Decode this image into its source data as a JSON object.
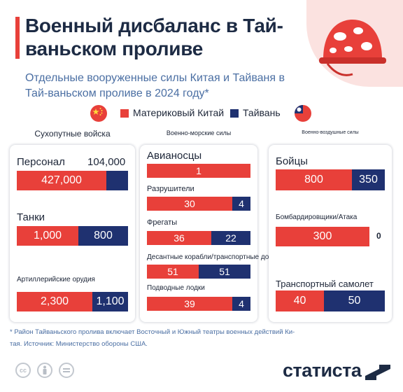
{
  "title": "Военный дисбаланс в Тай-ваньском проливе",
  "title_line1": "Военный дисбаланс в Тай-",
  "title_line2": "ваньском проливе",
  "subtitle": "Отдельные вооруженные силы Китая и Тайваня в Тай-ваньском проливе в 2024 году*",
  "legend": {
    "china": "Материковый Китай",
    "taiwan": "Тайвань"
  },
  "colors": {
    "china": "#e8403a",
    "taiwan": "#1f3170",
    "accent": "#e8403a",
    "note": "#4b6fa3"
  },
  "footnote": "* Район Тайваньского пролива включает Восточный и Южный театры военных действий Китая. Источник: Министерство обороны США.",
  "footnote_line1": "* Район Тайваньского пролива включает Восточный и Южный театры военных действий Ки-",
  "footnote_line2": "тая. Источник: Министерство обороны США.",
  "brand": "статиста",
  "icons": [
    "helmet-icon",
    "china-flag-icon",
    "taiwan-flag-icon",
    "cc-icon",
    "by-icon",
    "nd-icon",
    "statista-logo-icon"
  ],
  "chart_data": [
    {
      "type": "bar",
      "title": "Сухопутные войска",
      "series": [
        "Материковый Китай",
        "Тайвань"
      ],
      "categories": [
        "Персонал",
        "Танки",
        "Артиллерийские орудия"
      ],
      "rows": [
        {
          "label": "Персонал",
          "china": 427000,
          "taiwan": 104000,
          "china_text": "427,000",
          "taiwan_text": "104,000"
        },
        {
          "label": "Танки",
          "china": 1000,
          "taiwan": 800,
          "china_text": "1,000",
          "taiwan_text": "800"
        },
        {
          "label": "Артиллерийские орудия",
          "china": 2300,
          "taiwan": 1100,
          "china_text": "2,300",
          "taiwan_text": "1,100"
        }
      ]
    },
    {
      "type": "bar",
      "title": "Военно-морские силы",
      "series": [
        "Материковый Китай",
        "Тайвань"
      ],
      "categories": [
        "Авианосцы",
        "Разрушители",
        "Фрегаты",
        "Десантные корабли/транспортные доки",
        "Подводные лодки"
      ],
      "rows": [
        {
          "label": "Авианосцы",
          "china": 1,
          "taiwan": 0,
          "china_text": "1",
          "taiwan_text": ""
        },
        {
          "label": "Разрушители",
          "china": 30,
          "taiwan": 4,
          "china_text": "30",
          "taiwan_text": "4"
        },
        {
          "label": "Фрегаты",
          "china": 36,
          "taiwan": 22,
          "china_text": "36",
          "taiwan_text": "22"
        },
        {
          "label": "Десантные корабли/транспортные доки",
          "china": 51,
          "taiwan": 51,
          "china_text": "51",
          "taiwan_text": "51"
        },
        {
          "label": "Подводные лодки",
          "china": 39,
          "taiwan": 4,
          "china_text": "39",
          "taiwan_text": "4"
        }
      ]
    },
    {
      "type": "bar",
      "title": "Военно-воздушные силы",
      "series": [
        "Материковый Китай",
        "Тайвань"
      ],
      "categories": [
        "Бойцы",
        "Бомбардировщики/Атака",
        "Транспортный самолет"
      ],
      "rows": [
        {
          "label": "Бойцы",
          "china": 800,
          "taiwan": 350,
          "china_text": "800",
          "taiwan_text": "350"
        },
        {
          "label": "Бомбардировщики/Атака",
          "china": 300,
          "taiwan": 0,
          "china_text": "300",
          "taiwan_text": "0"
        },
        {
          "label": "Транспортный самолет",
          "china": 40,
          "taiwan": 50,
          "china_text": "40",
          "taiwan_text": "50"
        }
      ]
    }
  ]
}
